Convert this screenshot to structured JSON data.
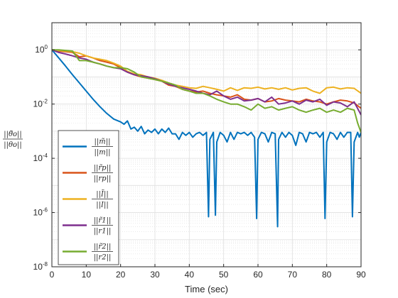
{
  "chart_data": {
    "type": "line",
    "title": "",
    "xlabel": "Time (sec)",
    "ylabel": "||θ̃o|| / ||θo||",
    "xlim": [
      0,
      90
    ],
    "ylim": [
      1e-08,
      10
    ],
    "yscale": "log",
    "grid": true,
    "minor_grid": true,
    "legend_position": "bottom-left",
    "x_ticks": [
      0,
      10,
      20,
      30,
      40,
      50,
      60,
      70,
      80,
      90
    ],
    "y_ticks": [
      {
        "value": 1,
        "label": "10^0"
      },
      {
        "value": 0.01,
        "label": "10^-2"
      },
      {
        "value": 0.0001,
        "label": "10^-4"
      },
      {
        "value": 1e-06,
        "label": "10^-6"
      },
      {
        "value": 1e-08,
        "label": "10^-8"
      }
    ],
    "series": [
      {
        "name": "||m̃|| / ||m||",
        "color": "#0072BD",
        "x": [
          0,
          2,
          4,
          6,
          8,
          10,
          12,
          14,
          16,
          18,
          20,
          21,
          22,
          23,
          24,
          25,
          26,
          27,
          28,
          29,
          30,
          31,
          32,
          33,
          34,
          35,
          36,
          37,
          38,
          39,
          40,
          41,
          42,
          43,
          44,
          45,
          45.6,
          46,
          47,
          47.6,
          48,
          49,
          50,
          51,
          52,
          53,
          54,
          55,
          56,
          57,
          58,
          59,
          59.6,
          60,
          61,
          62,
          63,
          64,
          65,
          65.7,
          66,
          67,
          68,
          69,
          70,
          71,
          72,
          73,
          74,
          75,
          76,
          77,
          78,
          79,
          79.5,
          80,
          81,
          82,
          83,
          84,
          85,
          86,
          87,
          87.5,
          88,
          89,
          89.5,
          90
        ],
        "values": [
          1.0,
          0.5,
          0.25,
          0.12,
          0.06,
          0.03,
          0.015,
          0.008,
          0.0045,
          0.0028,
          0.0022,
          0.0018,
          0.0024,
          0.0012,
          0.0014,
          0.001,
          0.0015,
          0.0008,
          0.0011,
          0.0009,
          0.0012,
          0.0008,
          0.0012,
          0.0009,
          0.0013,
          0.0008,
          0.0008,
          0.0005,
          0.0009,
          0.0007,
          0.0009,
          0.0006,
          0.0008,
          0.0009,
          0.0007,
          0.0009,
          7e-07,
          0.0005,
          0.0009,
          8e-07,
          0.0004,
          0.0009,
          0.0007,
          0.0004,
          0.0009,
          0.0005,
          0.0009,
          0.0008,
          0.0009,
          0.0007,
          0.0009,
          0.0006,
          6e-07,
          0.0005,
          0.0009,
          0.0008,
          0.0004,
          0.0009,
          0.0008,
          3e-07,
          0.0005,
          0.0009,
          0.0006,
          0.0009,
          0.0007,
          0.0003,
          0.0009,
          0.0008,
          0.0004,
          0.0009,
          0.0008,
          0.0009,
          0.0006,
          0.0009,
          6e-07,
          0.0004,
          0.0009,
          0.0008,
          0.0005,
          0.0009,
          0.0006,
          0.0009,
          0.0009,
          7e-07,
          0.0004,
          0.0009,
          0.0006,
          0.0009
        ]
      },
      {
        "name": "||r̃p|| / ||rp||",
        "color": "#D95319",
        "x": [
          0,
          2,
          4,
          6,
          8,
          10,
          12,
          14,
          16,
          18,
          20,
          22,
          24,
          26,
          28,
          30,
          32,
          34,
          36,
          38,
          40,
          42,
          44,
          46,
          48,
          50,
          52,
          54,
          56,
          58,
          60,
          62,
          64,
          66,
          68,
          70,
          72,
          74,
          76,
          78,
          80,
          82,
          84,
          86,
          88,
          90
        ],
        "values": [
          1.0,
          0.9,
          0.85,
          0.8,
          0.55,
          0.6,
          0.5,
          0.4,
          0.35,
          0.3,
          0.22,
          0.15,
          0.12,
          0.1,
          0.09,
          0.08,
          0.07,
          0.05,
          0.045,
          0.035,
          0.03,
          0.028,
          0.03,
          0.025,
          0.022,
          0.02,
          0.018,
          0.022,
          0.015,
          0.014,
          0.016,
          0.012,
          0.013,
          0.016,
          0.014,
          0.013,
          0.012,
          0.015,
          0.013,
          0.012,
          0.01,
          0.012,
          0.014,
          0.013,
          0.011,
          0.007
        ]
      },
      {
        "name": "||Ĩ|| / ||I||",
        "color": "#EDB120",
        "x": [
          0,
          2,
          4,
          6,
          8,
          10,
          12,
          14,
          16,
          18,
          20,
          22,
          24,
          26,
          28,
          30,
          32,
          34,
          36,
          38,
          40,
          42,
          44,
          46,
          48,
          50,
          52,
          54,
          56,
          58,
          60,
          62,
          64,
          66,
          68,
          70,
          72,
          74,
          76,
          78,
          80,
          82,
          84,
          86,
          88,
          90
        ],
        "values": [
          1.0,
          0.95,
          0.9,
          0.85,
          0.75,
          0.6,
          0.5,
          0.45,
          0.4,
          0.32,
          0.25,
          0.16,
          0.13,
          0.12,
          0.1,
          0.09,
          0.075,
          0.06,
          0.05,
          0.045,
          0.04,
          0.038,
          0.045,
          0.04,
          0.035,
          0.03,
          0.04,
          0.032,
          0.04,
          0.038,
          0.042,
          0.036,
          0.04,
          0.035,
          0.04,
          0.033,
          0.038,
          0.04,
          0.03,
          0.025,
          0.04,
          0.042,
          0.036,
          0.04,
          0.038,
          0.025
        ]
      },
      {
        "name": "||r̃1|| / ||r1||",
        "color": "#7E2F8E",
        "x": [
          0,
          2,
          4,
          6,
          8,
          10,
          12,
          14,
          16,
          18,
          20,
          22,
          24,
          26,
          28,
          30,
          32,
          34,
          36,
          38,
          40,
          42,
          44,
          46,
          48,
          50,
          52,
          54,
          56,
          58,
          60,
          62,
          64,
          66,
          68,
          70,
          72,
          74,
          76,
          78,
          80,
          82,
          84,
          86,
          88,
          90
        ],
        "values": [
          1.0,
          0.8,
          0.7,
          0.6,
          0.5,
          0.45,
          0.35,
          0.3,
          0.25,
          0.22,
          0.2,
          0.15,
          0.12,
          0.11,
          0.1,
          0.085,
          0.07,
          0.055,
          0.045,
          0.04,
          0.035,
          0.03,
          0.025,
          0.022,
          0.03,
          0.02,
          0.015,
          0.018,
          0.013,
          0.014,
          0.016,
          0.012,
          0.018,
          0.01,
          0.011,
          0.013,
          0.01,
          0.014,
          0.012,
          0.015,
          0.009,
          0.012,
          0.011,
          0.008,
          0.012,
          0.004
        ]
      },
      {
        "name": "||r̃2|| / ||r2||",
        "color": "#77AC30",
        "x": [
          0,
          2,
          4,
          6,
          8,
          10,
          12,
          14,
          16,
          18,
          20,
          22,
          24,
          26,
          28,
          30,
          32,
          34,
          36,
          38,
          40,
          42,
          44,
          46,
          48,
          50,
          52,
          54,
          56,
          58,
          60,
          62,
          64,
          66,
          68,
          70,
          72,
          74,
          76,
          78,
          80,
          82,
          84,
          86,
          88,
          89,
          90
        ],
        "values": [
          1.0,
          1.0,
          0.95,
          0.9,
          0.4,
          0.4,
          0.35,
          0.3,
          0.25,
          0.22,
          0.22,
          0.2,
          0.15,
          0.1,
          0.09,
          0.08,
          0.07,
          0.06,
          0.05,
          0.035,
          0.03,
          0.025,
          0.025,
          0.02,
          0.015,
          0.012,
          0.01,
          0.01,
          0.008,
          0.006,
          0.01,
          0.007,
          0.008,
          0.006,
          0.007,
          0.008,
          0.006,
          0.005,
          0.006,
          0.007,
          0.005,
          0.006,
          0.005,
          0.007,
          0.006,
          0.002,
          0.0009
        ]
      }
    ]
  }
}
